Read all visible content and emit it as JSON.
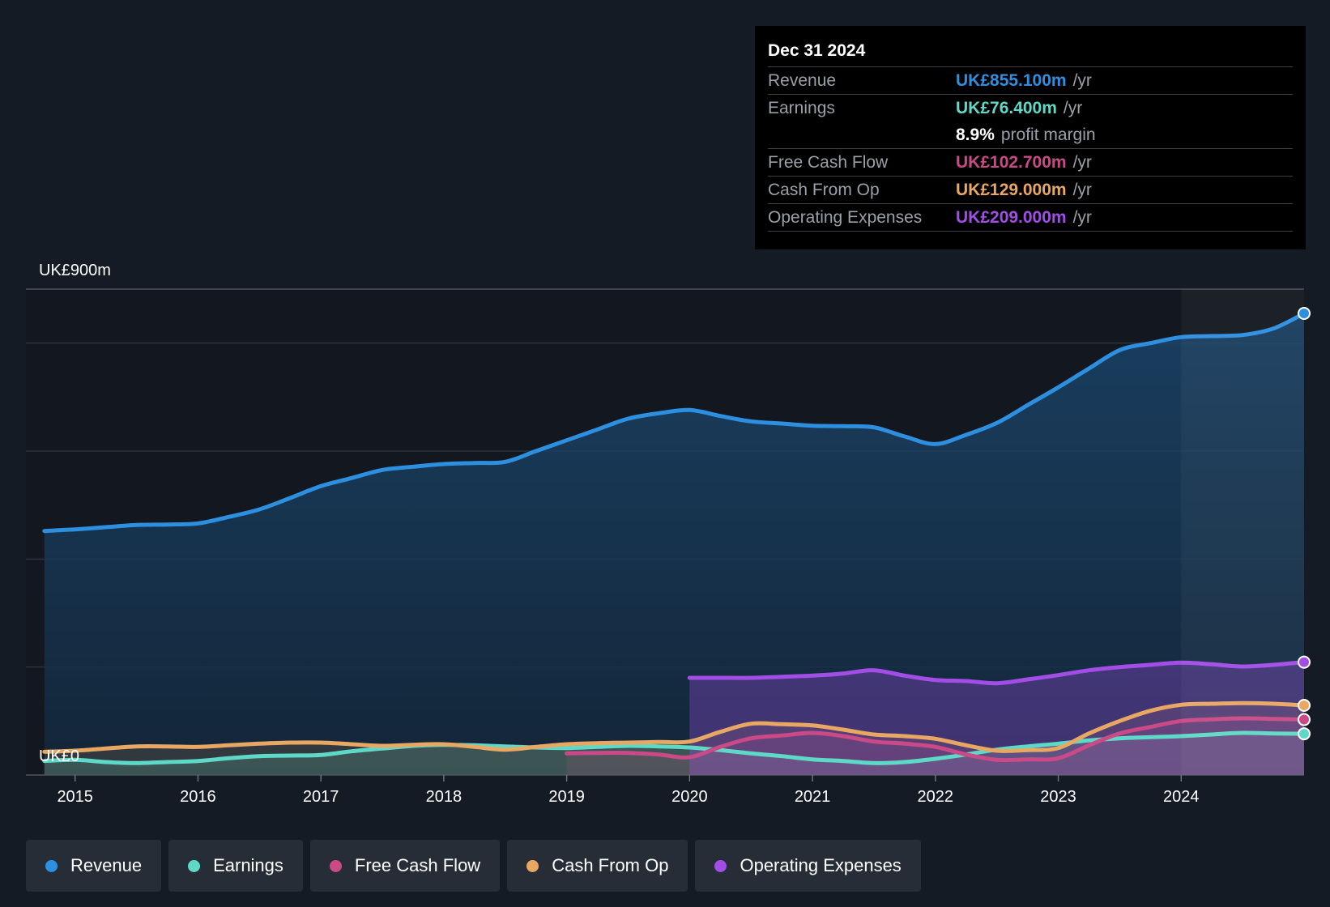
{
  "chart_data": {
    "type": "area",
    "title": "",
    "xlabel": "",
    "ylabel": "",
    "y_top_label": "UK£900m",
    "y_bottom_label": "UK£0",
    "ylim": [
      0,
      900
    ],
    "xlim": [
      2014.6,
      2025.0
    ],
    "x_ticks": [
      "2015",
      "2016",
      "2017",
      "2018",
      "2019",
      "2020",
      "2021",
      "2022",
      "2023",
      "2024"
    ],
    "x_tick_values": [
      2015,
      2016,
      2017,
      2018,
      2019,
      2020,
      2021,
      2022,
      2023,
      2024
    ],
    "highlight_from": 2024.0,
    "grid": true,
    "series": [
      {
        "name": "Revenue",
        "color": "#2d8fe0",
        "x": [
          2014.75,
          2015.0,
          2015.25,
          2015.5,
          2015.75,
          2016.0,
          2016.25,
          2016.5,
          2016.75,
          2017.0,
          2017.25,
          2017.5,
          2017.75,
          2018.0,
          2018.25,
          2018.5,
          2018.75,
          2019.0,
          2019.25,
          2019.5,
          2019.75,
          2020.0,
          2020.25,
          2020.5,
          2020.75,
          2021.0,
          2021.25,
          2021.5,
          2021.75,
          2022.0,
          2022.25,
          2022.5,
          2022.75,
          2023.0,
          2023.25,
          2023.5,
          2023.75,
          2024.0,
          2024.25,
          2024.5,
          2024.75,
          2025.0
        ],
        "values": [
          452,
          455,
          459,
          463,
          464,
          466,
          478,
          492,
          513,
          535,
          550,
          565,
          571,
          576,
          578,
          580,
          600,
          620,
          640,
          660,
          670,
          676,
          665,
          655,
          651,
          647,
          646,
          644,
          627,
          613,
          630,
          652,
          685,
          718,
          753,
          787,
          800,
          811,
          813,
          815,
          827,
          855
        ]
      },
      {
        "name": "Earnings",
        "color": "#5fd9c7",
        "x": [
          2014.75,
          2015.0,
          2015.25,
          2015.5,
          2015.75,
          2016.0,
          2016.25,
          2016.5,
          2016.75,
          2017.0,
          2017.25,
          2017.5,
          2017.75,
          2018.0,
          2018.25,
          2018.5,
          2018.75,
          2019.0,
          2019.25,
          2019.5,
          2019.75,
          2020.0,
          2020.25,
          2020.5,
          2020.75,
          2021.0,
          2021.25,
          2021.5,
          2021.75,
          2022.0,
          2022.25,
          2022.5,
          2022.75,
          2023.0,
          2023.25,
          2023.5,
          2023.75,
          2024.0,
          2024.25,
          2024.5,
          2024.75,
          2025.0
        ],
        "values": [
          26,
          28,
          24,
          22,
          24,
          26,
          31,
          35,
          36,
          37,
          44,
          49,
          54,
          56,
          55,
          53,
          51,
          50,
          52,
          54,
          53,
          51,
          46,
          40,
          35,
          29,
          26,
          22,
          24,
          30,
          38,
          47,
          53,
          58,
          64,
          68,
          70,
          72,
          75,
          78,
          77,
          76.4
        ]
      },
      {
        "name": "Free Cash Flow",
        "color": "#c94a87",
        "x": [
          2019.0,
          2019.25,
          2019.5,
          2019.75,
          2020.0,
          2020.25,
          2020.5,
          2020.75,
          2021.0,
          2021.25,
          2021.5,
          2021.75,
          2022.0,
          2022.25,
          2022.5,
          2022.75,
          2023.0,
          2023.25,
          2023.5,
          2023.75,
          2024.0,
          2024.25,
          2024.5,
          2024.75,
          2025.0
        ],
        "values": [
          40,
          41,
          41,
          38,
          33,
          52,
          68,
          73,
          78,
          72,
          62,
          58,
          52,
          38,
          28,
          29,
          31,
          55,
          77,
          89,
          100,
          103,
          105,
          104,
          102.7
        ]
      },
      {
        "name": "Cash From Op",
        "color": "#e8a863",
        "x": [
          2014.75,
          2015.0,
          2015.25,
          2015.5,
          2015.75,
          2016.0,
          2016.25,
          2016.5,
          2016.75,
          2017.0,
          2017.25,
          2017.5,
          2017.75,
          2018.0,
          2018.25,
          2018.5,
          2018.75,
          2019.0,
          2019.25,
          2019.5,
          2019.75,
          2020.0,
          2020.25,
          2020.5,
          2020.75,
          2021.0,
          2021.25,
          2021.5,
          2021.75,
          2022.0,
          2022.25,
          2022.5,
          2022.75,
          2023.0,
          2023.25,
          2023.5,
          2023.75,
          2024.0,
          2024.25,
          2024.5,
          2024.75,
          2025.0
        ],
        "values": [
          43,
          45,
          49,
          53,
          53,
          52,
          55,
          58,
          60,
          60,
          57,
          54,
          56,
          57,
          52,
          47,
          52,
          57,
          59,
          60,
          61,
          62,
          80,
          95,
          94,
          92,
          84,
          75,
          72,
          67,
          55,
          45,
          46,
          50,
          77,
          100,
          119,
          130,
          132,
          133,
          132,
          129
        ]
      },
      {
        "name": "Operating Expenses",
        "color": "#a24ee6",
        "x": [
          2020.0,
          2020.25,
          2020.5,
          2020.75,
          2021.0,
          2021.25,
          2021.5,
          2021.75,
          2022.0,
          2022.25,
          2022.5,
          2022.75,
          2023.0,
          2023.25,
          2023.5,
          2023.75,
          2024.0,
          2024.25,
          2024.5,
          2024.75,
          2025.0
        ],
        "values": [
          180,
          180,
          180,
          182,
          184,
          188,
          194,
          184,
          176,
          174,
          170,
          177,
          185,
          194,
          200,
          204,
          208,
          205,
          201,
          204,
          209
        ]
      }
    ]
  },
  "tooltip": {
    "date": "Dec 31 2024",
    "rows": [
      {
        "label": "Revenue",
        "value": "UK£855.100m",
        "unit": "/yr",
        "color": "#2d8fe0"
      },
      {
        "label": "Earnings",
        "value": "UK£76.400m",
        "unit": "/yr",
        "color": "#5fd9c7"
      },
      {
        "label": "",
        "value": "8.9%",
        "unit": "profit margin",
        "color": "#ffffff"
      },
      {
        "label": "Free Cash Flow",
        "value": "UK£102.700m",
        "unit": "/yr",
        "color": "#c94a87"
      },
      {
        "label": "Cash From Op",
        "value": "UK£129.000m",
        "unit": "/yr",
        "color": "#e8a863"
      },
      {
        "label": "Operating Expenses",
        "value": "UK£209.000m",
        "unit": "/yr",
        "color": "#a24ee6"
      }
    ]
  },
  "legend": [
    {
      "label": "Revenue",
      "color": "#2d8fe0"
    },
    {
      "label": "Earnings",
      "color": "#5fd9c7"
    },
    {
      "label": "Free Cash Flow",
      "color": "#c94a87"
    },
    {
      "label": "Cash From Op",
      "color": "#e8a863"
    },
    {
      "label": "Operating Expenses",
      "color": "#a24ee6"
    }
  ]
}
